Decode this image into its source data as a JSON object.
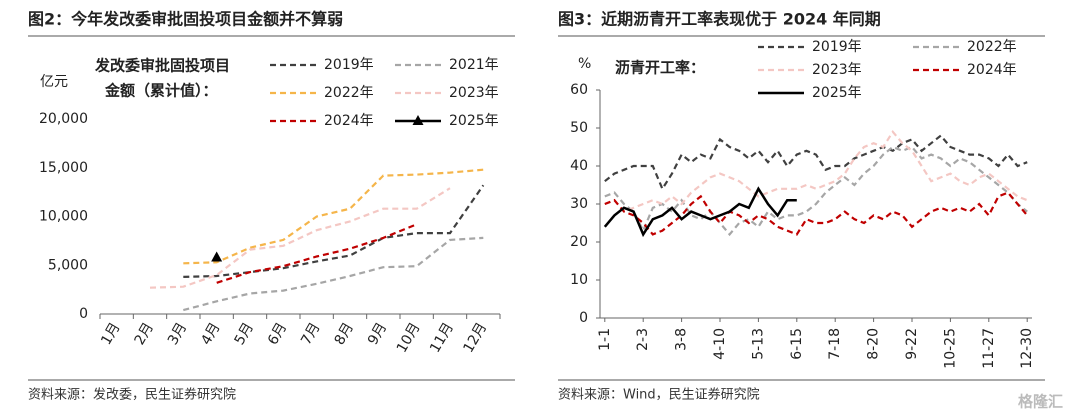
{
  "chart_data": [
    {
      "type": "line",
      "title": "图2：今年发改委审批固投项目金额并不算弱",
      "y_label": "亿元",
      "annotation": [
        "发改委审批固投项目",
        "金额（累计值）："
      ],
      "categories": [
        "1月",
        "2月",
        "3月",
        "4月",
        "5月",
        "6月",
        "7月",
        "8月",
        "9月",
        "10月",
        "11月",
        "12月"
      ],
      "ylim": [
        0,
        20000
      ],
      "yticks": [
        0,
        {
          "value": 5000,
          "label": "5,000"
        },
        {
          "value": 10000,
          "label": "10,000"
        },
        {
          "value": 15000,
          "label": "15,000"
        },
        {
          "value": 20000,
          "label": "20,000"
        }
      ],
      "series": [
        {
          "name": "2019年",
          "color": "#404040",
          "dash": true,
          "values": [
            null,
            null,
            3800,
            3900,
            4300,
            4700,
            5400,
            6000,
            7800,
            8300,
            8300,
            13200
          ]
        },
        {
          "name": "2021年",
          "color": "#a6a6a6",
          "dash": true,
          "values": [
            null,
            null,
            400,
            1300,
            2100,
            2400,
            3100,
            3900,
            4800,
            4900,
            7600,
            7800
          ]
        },
        {
          "name": "2022年",
          "color": "#f5b54a",
          "dash": true,
          "values": [
            null,
            null,
            5200,
            5300,
            6800,
            7600,
            10000,
            10800,
            14200,
            14300,
            14500,
            14800
          ]
        },
        {
          "name": "2023年",
          "color": "#f4c7c3",
          "dash": true,
          "values": [
            null,
            2700,
            2800,
            4000,
            6600,
            7000,
            8600,
            9500,
            10800,
            10800,
            12900,
            null
          ]
        },
        {
          "name": "2024年",
          "color": "#c00000",
          "dash": true,
          "values": [
            null,
            null,
            null,
            3200,
            4300,
            4900,
            5900,
            6700,
            7800,
            9200,
            null,
            null
          ]
        },
        {
          "name": "2025年",
          "color": "#000000",
          "dash": false,
          "marker": "triangle",
          "values": [
            null,
            null,
            null,
            5800,
            null,
            null,
            null,
            null,
            null,
            null,
            null,
            null
          ]
        }
      ],
      "source": "资料来源：发改委，民生证券研究院"
    },
    {
      "type": "line",
      "title": "图3：近期沥青开工率表现优于 2024 年同期",
      "y_label": "%",
      "annotation": [
        "沥青开工率："
      ],
      "categories": [
        "1-1",
        null,
        null,
        null,
        "2-3",
        null,
        null,
        null,
        "3-8",
        null,
        null,
        null,
        "4-10",
        null,
        null,
        null,
        "5-13",
        null,
        null,
        null,
        "6-15",
        null,
        null,
        null,
        "7-18",
        null,
        null,
        null,
        "8-20",
        null,
        null,
        null,
        "9-22",
        null,
        null,
        null,
        "10-25",
        null,
        null,
        null,
        "11-27",
        null,
        null,
        null,
        "12-30"
      ],
      "ylim": [
        0,
        60
      ],
      "yticks": [
        0,
        10,
        20,
        30,
        40,
        50,
        60
      ],
      "series": [
        {
          "name": "2019年",
          "color": "#404040",
          "dash": true,
          "values": [
            36,
            38,
            39,
            40,
            40,
            40,
            34,
            38,
            43,
            41,
            43,
            42,
            47,
            45,
            44,
            42,
            44,
            41,
            44,
            40,
            43,
            44,
            43,
            39,
            40,
            40,
            42,
            43,
            44,
            45,
            44,
            46,
            47,
            44,
            46,
            48,
            45,
            44,
            43,
            43,
            42,
            40,
            43,
            40,
            41
          ]
        },
        {
          "name": "2022年",
          "color": "#a6a6a6",
          "dash": true,
          "values": [
            32,
            33,
            30,
            28,
            23,
            29,
            30,
            28,
            31,
            27,
            26,
            28,
            25,
            22,
            25,
            26,
            24,
            28,
            26,
            27,
            27,
            28,
            30,
            33,
            35,
            37,
            35,
            38,
            40,
            43,
            45,
            44,
            45,
            42,
            43,
            42,
            40,
            42,
            41,
            39,
            37,
            35,
            33,
            30,
            28
          ]
        },
        {
          "name": "2023年",
          "color": "#f4c7c3",
          "dash": true,
          "values": [
            30,
            31,
            28,
            29,
            30,
            31,
            30,
            32,
            30,
            33,
            35,
            37,
            38,
            37,
            36,
            34,
            32,
            33,
            34,
            34,
            34,
            35,
            34,
            35,
            36,
            38,
            42,
            45,
            46,
            45,
            49,
            46,
            44,
            40,
            36,
            37,
            38,
            36,
            35,
            37,
            38,
            36,
            34,
            32,
            31
          ]
        },
        {
          "name": "2024年",
          "color": "#c00000",
          "dash": true,
          "values": [
            30,
            31,
            28,
            27,
            25,
            22,
            23,
            25,
            27,
            30,
            32,
            28,
            25,
            28,
            27,
            25,
            27,
            26,
            24,
            23,
            22,
            26,
            25,
            25,
            26,
            28,
            26,
            25,
            27,
            26,
            28,
            27,
            24,
            26,
            28,
            29,
            28,
            29,
            28,
            30,
            27,
            32,
            33,
            30,
            27
          ]
        },
        {
          "name": "2025年",
          "color": "#000000",
          "dash": false,
          "values": [
            24,
            27,
            29,
            28,
            22,
            26,
            27,
            29,
            26,
            28,
            27,
            26,
            27,
            28,
            30,
            29,
            34,
            30,
            27,
            31,
            31,
            null,
            null,
            null,
            null,
            null,
            null,
            null,
            null,
            null,
            null,
            null,
            null,
            null,
            null,
            null,
            null,
            null,
            null,
            null,
            null,
            null,
            null,
            null,
            null
          ]
        }
      ],
      "source": "资料来源：Wind，民生证券研究院"
    }
  ],
  "watermark": "格隆汇"
}
